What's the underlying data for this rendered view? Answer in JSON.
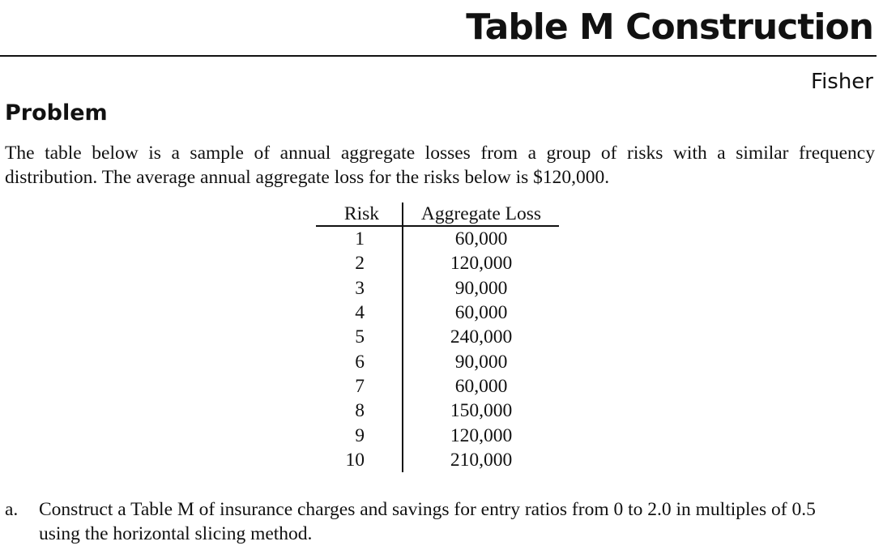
{
  "header": {
    "title": "Table M Construction",
    "author": "Fisher"
  },
  "problem": {
    "heading": "Problem",
    "text_line_1": "The table below is a sample of annual aggregate losses from a group of risks with a similar frequency",
    "text_line_2": "distribution. The average annual aggregate loss for the risks below is $120,000."
  },
  "table": {
    "columns": [
      "Risk",
      "Aggregate Loss"
    ],
    "rows": [
      [
        "1",
        "60,000"
      ],
      [
        "2",
        "120,000"
      ],
      [
        "3",
        "90,000"
      ],
      [
        "4",
        "60,000"
      ],
      [
        "5",
        "240,000"
      ],
      [
        "6",
        "90,000"
      ],
      [
        "7",
        "60,000"
      ],
      [
        "8",
        "150,000"
      ],
      [
        "9",
        "120,000"
      ],
      [
        "10",
        "210,000"
      ]
    ]
  },
  "questions": [
    {
      "label": "a.",
      "text_line_1": "Construct a Table M of insurance charges and savings for entry ratios from 0 to 2.0 in multiples of 0.5",
      "text_line_2": "using the horizontal slicing method."
    }
  ]
}
